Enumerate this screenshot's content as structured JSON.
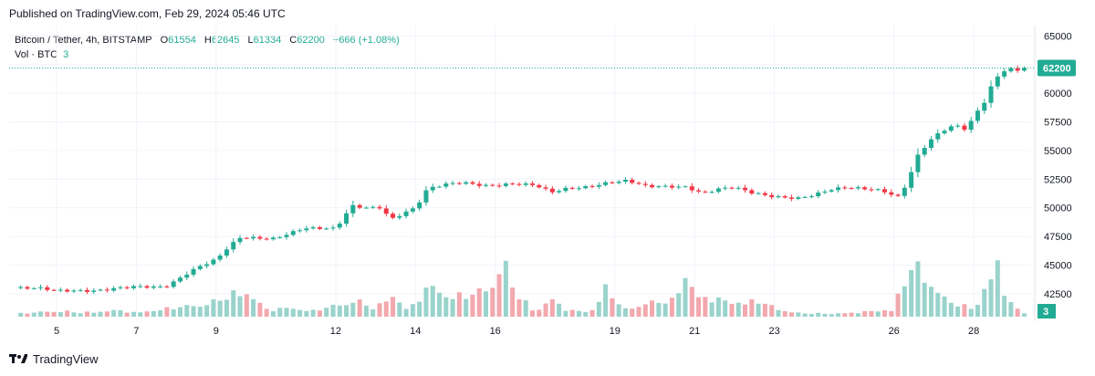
{
  "header": {
    "published": "Published on TradingView.com, Feb 29, 2024 05:46 UTC"
  },
  "legend": {
    "symbol": "Bitcoin / Tether, 4h, BITSTAMP",
    "o_label": "O",
    "o_value": "61554",
    "h_label": "H",
    "h_value": "62645",
    "l_label": "L",
    "l_value": "61334",
    "c_label": "C",
    "c_value": "62200",
    "change": "+666 (+1.08%)",
    "vol_label": "Vol · BTC",
    "vol_value": "3"
  },
  "footer": {
    "brand": "TradingView"
  },
  "colors": {
    "up": "#22ab94",
    "down": "#f23645",
    "up_vol": "#9ad3cc",
    "down_vol": "#f2a8ad",
    "grid": "#f0f3fa"
  },
  "chart_data": {
    "type": "candlestick",
    "price_axis": {
      "ticks": [
        42500,
        45000,
        47500,
        50000,
        52500,
        55000,
        57500,
        60000,
        62500,
        65000
      ],
      "range": [
        40500,
        65900
      ]
    },
    "x_ticks": [
      {
        "label": "5",
        "day": 5
      },
      {
        "label": "7",
        "day": 7
      },
      {
        "label": "9",
        "day": 9
      },
      {
        "label": "12",
        "day": 12
      },
      {
        "label": "14",
        "day": 14
      },
      {
        "label": "16",
        "day": 16
      },
      {
        "label": "19",
        "day": 19
      },
      {
        "label": "21",
        "day": 21
      },
      {
        "label": "23",
        "day": 23
      },
      {
        "label": "26",
        "day": 26
      },
      {
        "label": "28",
        "day": 28
      }
    ],
    "last_price": 62200,
    "last_price_label": "62200",
    "last_volume_label": "3",
    "ohlc_anchors": [
      [
        4.1,
        43000
      ],
      [
        4.6,
        42900
      ],
      [
        5.0,
        42700
      ],
      [
        5.5,
        42800
      ],
      [
        6.0,
        42850
      ],
      [
        6.5,
        43000
      ],
      [
        7.0,
        43050
      ],
      [
        7.5,
        43000
      ],
      [
        7.8,
        43200
      ],
      [
        8.2,
        44200
      ],
      [
        8.6,
        45000
      ],
      [
        9.0,
        45500
      ],
      [
        9.3,
        46500
      ],
      [
        9.6,
        47300
      ],
      [
        10.0,
        47300
      ],
      [
        10.4,
        47300
      ],
      [
        10.8,
        47800
      ],
      [
        11.2,
        48300
      ],
      [
        11.6,
        48200
      ],
      [
        12.0,
        48100
      ],
      [
        12.4,
        50100
      ],
      [
        12.8,
        50000
      ],
      [
        13.1,
        50100
      ],
      [
        13.4,
        49100
      ],
      [
        13.7,
        49600
      ],
      [
        14.0,
        50000
      ],
      [
        14.3,
        51600
      ],
      [
        14.8,
        52000
      ],
      [
        15.2,
        52200
      ],
      [
        15.8,
        52000
      ],
      [
        16.4,
        52100
      ],
      [
        17.0,
        51900
      ],
      [
        17.4,
        51300
      ],
      [
        17.8,
        51700
      ],
      [
        18.3,
        51900
      ],
      [
        18.8,
        52200
      ],
      [
        19.3,
        52300
      ],
      [
        19.8,
        51800
      ],
      [
        20.4,
        51900
      ],
      [
        20.8,
        51900
      ],
      [
        21.2,
        51300
      ],
      [
        21.6,
        51600
      ],
      [
        22.0,
        51700
      ],
      [
        22.4,
        51300
      ],
      [
        22.8,
        51100
      ],
      [
        23.2,
        51000
      ],
      [
        23.6,
        50900
      ],
      [
        24.0,
        51100
      ],
      [
        24.4,
        51500
      ],
      [
        24.8,
        51700
      ],
      [
        25.2,
        51700
      ],
      [
        25.7,
        51600
      ],
      [
        26.1,
        51000
      ],
      [
        26.3,
        52000
      ],
      [
        26.6,
        54500
      ],
      [
        26.9,
        55800
      ],
      [
        27.2,
        56600
      ],
      [
        27.5,
        57200
      ],
      [
        27.8,
        56900
      ],
      [
        28.0,
        58000
      ],
      [
        28.3,
        59500
      ],
      [
        28.5,
        61200
      ],
      [
        28.7,
        61700
      ],
      [
        28.85,
        62400
      ],
      [
        29.05,
        61700
      ],
      [
        29.2,
        62200
      ]
    ],
    "volume_anchors": [
      [
        4.1,
        0.8
      ],
      [
        5.0,
        1.5
      ],
      [
        5.6,
        1.0
      ],
      [
        6.5,
        1.6
      ],
      [
        7.0,
        1.0
      ],
      [
        7.6,
        1.8
      ],
      [
        8.4,
        2.8
      ],
      [
        9.0,
        3.8
      ],
      [
        9.7,
        6.8
      ],
      [
        10.3,
        1.5
      ],
      [
        10.8,
        2.3
      ],
      [
        11.4,
        1.4
      ],
      [
        12.0,
        2.8
      ],
      [
        12.5,
        4.2
      ],
      [
        13.0,
        1.8
      ],
      [
        13.4,
        6.0
      ],
      [
        13.8,
        1.5
      ],
      [
        14.4,
        7.9
      ],
      [
        14.8,
        5.0
      ],
      [
        15.5,
        5.6
      ],
      [
        15.9,
        8.0
      ],
      [
        16.2,
        14.0
      ],
      [
        16.5,
        6.0
      ],
      [
        17.0,
        1.2
      ],
      [
        17.4,
        4.5
      ],
      [
        17.8,
        1.6
      ],
      [
        18.4,
        1.2
      ],
      [
        18.8,
        7.6
      ],
      [
        19.2,
        1.6
      ],
      [
        19.8,
        3.5
      ],
      [
        20.5,
        4.0
      ],
      [
        20.8,
        12.5
      ],
      [
        21.0,
        5.0
      ],
      [
        21.5,
        4.4
      ],
      [
        22.0,
        3.5
      ],
      [
        22.6,
        4.0
      ],
      [
        23.0,
        2.2
      ],
      [
        23.5,
        1.0
      ],
      [
        24.0,
        0.8
      ],
      [
        24.5,
        0.8
      ],
      [
        25.0,
        1.0
      ],
      [
        25.6,
        1.5
      ],
      [
        26.0,
        1.8
      ],
      [
        26.2,
        8.6
      ],
      [
        26.5,
        12.6
      ],
      [
        26.8,
        10.0
      ],
      [
        27.2,
        5.0
      ],
      [
        27.6,
        3.0
      ],
      [
        28.0,
        2.0
      ],
      [
        28.4,
        9.0
      ],
      [
        28.65,
        15.0
      ],
      [
        28.8,
        4.0
      ],
      [
        29.0,
        2.8
      ],
      [
        29.2,
        1.0
      ]
    ]
  }
}
